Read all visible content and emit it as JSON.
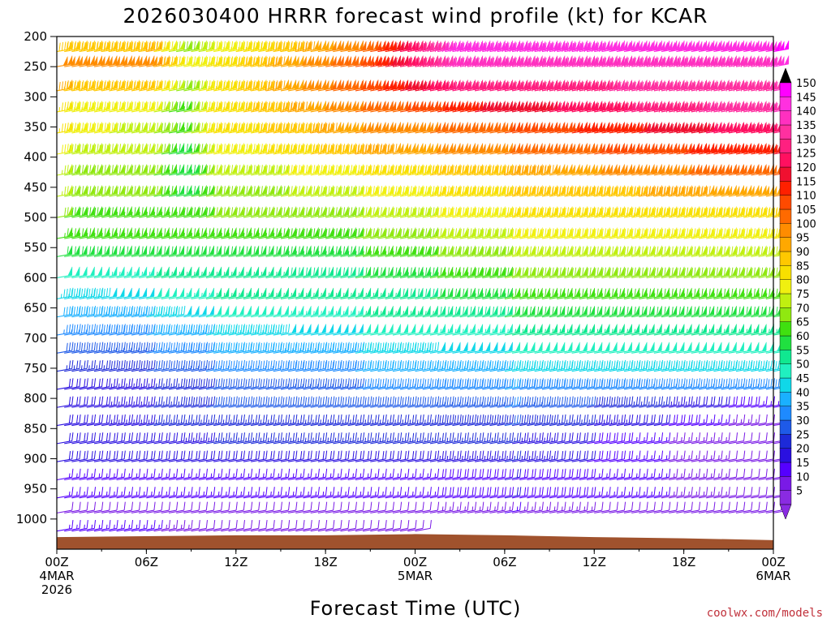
{
  "chart_data": {
    "type": "wind-barb time-height",
    "title": "2026030400 HRRR forecast wind profile (kt) for KCAR",
    "xlabel": "Forecast Time (UTC)",
    "ylabel": "",
    "credit": "coolwx.com/models",
    "y_ticks": [
      "200",
      "250",
      "300",
      "350",
      "400",
      "450",
      "500",
      "550",
      "600",
      "650",
      "700",
      "750",
      "800",
      "850",
      "900",
      "950",
      "1000"
    ],
    "y_values_hpa": [
      200,
      250,
      300,
      350,
      400,
      450,
      500,
      550,
      600,
      650,
      700,
      750,
      800,
      850,
      900,
      950,
      1000
    ],
    "ylim_hpa": [
      200,
      1050
    ],
    "x_ticks": [
      {
        "hour": 0,
        "lines": [
          "00Z",
          "4MAR",
          "2026"
        ]
      },
      {
        "hour": 6,
        "lines": [
          "06Z"
        ]
      },
      {
        "hour": 12,
        "lines": [
          "12Z"
        ]
      },
      {
        "hour": 18,
        "lines": [
          "18Z"
        ]
      },
      {
        "hour": 24,
        "lines": [
          "00Z",
          "5MAR"
        ]
      },
      {
        "hour": 30,
        "lines": [
          "06Z"
        ]
      },
      {
        "hour": 36,
        "lines": [
          "12Z"
        ]
      },
      {
        "hour": 42,
        "lines": [
          "18Z"
        ]
      },
      {
        "hour": 48,
        "lines": [
          "00Z",
          "6MAR"
        ]
      }
    ],
    "xlim_hours": [
      0,
      48
    ],
    "colorbar": {
      "levels": [
        5,
        10,
        15,
        20,
        25,
        30,
        35,
        40,
        45,
        50,
        55,
        60,
        65,
        70,
        75,
        80,
        85,
        90,
        95,
        100,
        105,
        110,
        115,
        120,
        125,
        130,
        135,
        140,
        145,
        150
      ],
      "labels": [
        "5",
        "10",
        "15",
        "20",
        "25",
        "30",
        "35",
        "40",
        "45",
        "50",
        "55",
        "60",
        "65",
        "70",
        "75",
        "80",
        "85",
        "90",
        "95",
        "100",
        "105",
        "110",
        "115",
        "120",
        "125",
        "130",
        "135",
        "140",
        "145",
        "150"
      ],
      "colors": [
        "#8a2be2",
        "#7a1ae6",
        "#5500ff",
        "#2a10e0",
        "#1d2ad8",
        "#1e5ae8",
        "#1e8aff",
        "#1ab0ff",
        "#10d8e8",
        "#20f0c0",
        "#10e890",
        "#20e040",
        "#40e010",
        "#90e810",
        "#c0f010",
        "#f0f010",
        "#f8e000",
        "#ffc800",
        "#ffa800",
        "#ff8c00",
        "#ff6a00",
        "#ff4a00",
        "#ff2000",
        "#f01030",
        "#ff1060",
        "#ff2080",
        "#ff30a0",
        "#ff30c0",
        "#ff30e0",
        "#ff00ff"
      ],
      "arrow_top_color": "#000000",
      "arrow_bottom_color": "#8a2be2"
    },
    "levels": [
      {
        "p": 225,
        "speeds": [
          [
            0,
            90
          ],
          [
            6,
            95
          ],
          [
            8,
            70
          ],
          [
            10,
            80
          ],
          [
            20,
            105
          ],
          [
            26,
            145
          ],
          [
            48,
            150
          ]
        ]
      },
      {
        "p": 250,
        "speeds": [
          [
            0,
            100
          ],
          [
            6,
            100
          ],
          [
            8,
            80
          ],
          [
            10,
            85
          ],
          [
            20,
            110
          ],
          [
            26,
            140
          ],
          [
            48,
            145
          ]
        ]
      },
      {
        "p": 290,
        "speeds": [
          [
            0,
            95
          ],
          [
            6,
            90
          ],
          [
            8,
            70
          ],
          [
            10,
            85
          ],
          [
            20,
            110
          ],
          [
            26,
            130
          ],
          [
            48,
            140
          ]
        ]
      },
      {
        "p": 325,
        "speeds": [
          [
            0,
            85
          ],
          [
            6,
            80
          ],
          [
            8,
            65
          ],
          [
            10,
            85
          ],
          [
            20,
            105
          ],
          [
            28,
            120
          ],
          [
            48,
            140
          ]
        ]
      },
      {
        "p": 360,
        "speeds": [
          [
            0,
            85
          ],
          [
            6,
            75
          ],
          [
            8,
            65
          ],
          [
            10,
            85
          ],
          [
            20,
            100
          ],
          [
            30,
            110
          ],
          [
            48,
            130
          ]
        ]
      },
      {
        "p": 395,
        "speeds": [
          [
            0,
            80
          ],
          [
            6,
            75
          ],
          [
            8,
            60
          ],
          [
            10,
            80
          ],
          [
            20,
            95
          ],
          [
            30,
            105
          ],
          [
            48,
            120
          ]
        ]
      },
      {
        "p": 430,
        "speeds": [
          [
            0,
            75
          ],
          [
            6,
            70
          ],
          [
            8,
            60
          ],
          [
            10,
            75
          ],
          [
            20,
            85
          ],
          [
            30,
            95
          ],
          [
            48,
            110
          ]
        ]
      },
      {
        "p": 465,
        "speeds": [
          [
            0,
            75
          ],
          [
            6,
            70
          ],
          [
            8,
            60
          ],
          [
            10,
            70
          ],
          [
            20,
            80
          ],
          [
            30,
            90
          ],
          [
            48,
            100
          ]
        ]
      },
      {
        "p": 500,
        "speeds": [
          [
            0,
            70
          ],
          [
            6,
            65
          ],
          [
            10,
            70
          ],
          [
            20,
            75
          ],
          [
            30,
            85
          ],
          [
            48,
            90
          ]
        ]
      },
      {
        "p": 535,
        "speeds": [
          [
            0,
            65
          ],
          [
            6,
            65
          ],
          [
            10,
            65
          ],
          [
            20,
            70
          ],
          [
            30,
            80
          ],
          [
            48,
            85
          ]
        ]
      },
      {
        "p": 565,
        "speeds": [
          [
            0,
            60
          ],
          [
            6,
            60
          ],
          [
            10,
            60
          ],
          [
            20,
            65
          ],
          [
            30,
            75
          ],
          [
            48,
            75
          ]
        ]
      },
      {
        "p": 600,
        "speeds": [
          [
            0,
            50
          ],
          [
            6,
            55
          ],
          [
            10,
            55
          ],
          [
            20,
            60
          ],
          [
            30,
            70
          ],
          [
            48,
            70
          ]
        ]
      },
      {
        "p": 635,
        "speeds": [
          [
            0,
            45
          ],
          [
            6,
            50
          ],
          [
            10,
            55
          ],
          [
            20,
            55
          ],
          [
            30,
            65
          ],
          [
            48,
            65
          ]
        ]
      },
      {
        "p": 665,
        "speeds": [
          [
            0,
            40
          ],
          [
            6,
            45
          ],
          [
            10,
            50
          ],
          [
            20,
            55
          ],
          [
            30,
            60
          ],
          [
            48,
            60
          ]
        ]
      },
      {
        "p": 695,
        "speeds": [
          [
            0,
            35
          ],
          [
            6,
            40
          ],
          [
            10,
            45
          ],
          [
            20,
            50
          ],
          [
            30,
            55
          ],
          [
            48,
            55
          ]
        ]
      },
      {
        "p": 725,
        "speeds": [
          [
            0,
            30
          ],
          [
            6,
            35
          ],
          [
            10,
            40
          ],
          [
            20,
            45
          ],
          [
            30,
            50
          ],
          [
            48,
            50
          ]
        ]
      },
      {
        "p": 755,
        "speeds": [
          [
            0,
            25
          ],
          [
            6,
            30
          ],
          [
            10,
            35
          ],
          [
            20,
            40
          ],
          [
            30,
            45
          ],
          [
            48,
            45
          ]
        ]
      },
      {
        "p": 785,
        "speeds": [
          [
            0,
            20
          ],
          [
            6,
            25
          ],
          [
            10,
            30
          ],
          [
            20,
            35
          ],
          [
            30,
            40
          ],
          [
            48,
            35
          ]
        ]
      },
      {
        "p": 815,
        "speeds": [
          [
            0,
            20
          ],
          [
            6,
            25
          ],
          [
            10,
            30
          ],
          [
            20,
            30
          ],
          [
            30,
            35
          ],
          [
            40,
            25
          ],
          [
            48,
            15
          ]
        ]
      },
      {
        "p": 845,
        "speeds": [
          [
            0,
            20
          ],
          [
            6,
            25
          ],
          [
            10,
            25
          ],
          [
            20,
            25
          ],
          [
            30,
            30
          ],
          [
            40,
            20
          ],
          [
            48,
            10
          ]
        ]
      },
      {
        "p": 875,
        "speeds": [
          [
            0,
            20
          ],
          [
            6,
            20
          ],
          [
            10,
            25
          ],
          [
            20,
            25
          ],
          [
            30,
            25
          ],
          [
            40,
            15
          ],
          [
            48,
            10
          ]
        ]
      },
      {
        "p": 905,
        "speeds": [
          [
            0,
            20
          ],
          [
            6,
            20
          ],
          [
            10,
            20
          ],
          [
            20,
            20
          ],
          [
            30,
            25
          ],
          [
            40,
            15
          ],
          [
            48,
            10
          ]
        ]
      },
      {
        "p": 935,
        "speeds": [
          [
            0,
            15
          ],
          [
            6,
            15
          ],
          [
            10,
            15
          ],
          [
            20,
            15
          ],
          [
            30,
            20
          ],
          [
            40,
            15
          ],
          [
            48,
            10
          ]
        ]
      },
      {
        "p": 965,
        "speeds": [
          [
            0,
            15
          ],
          [
            6,
            15
          ],
          [
            10,
            15
          ],
          [
            20,
            15
          ],
          [
            30,
            20
          ],
          [
            40,
            15
          ],
          [
            48,
            10
          ]
        ]
      },
      {
        "p": 990,
        "speeds": [
          [
            0,
            10
          ],
          [
            6,
            10
          ],
          [
            10,
            10
          ],
          [
            20,
            10
          ],
          [
            30,
            15
          ],
          [
            40,
            10
          ],
          [
            48,
            10
          ]
        ]
      },
      {
        "p": 1020,
        "speeds": [
          [
            0,
            15
          ],
          [
            6,
            15
          ],
          [
            10,
            10
          ],
          [
            20,
            10
          ],
          [
            24,
            10
          ]
        ]
      }
    ],
    "terrain": {
      "color": "#a0522d",
      "surface_pressure_hpa": [
        [
          0,
          1030
        ],
        [
          12,
          1027
        ],
        [
          18,
          1027
        ],
        [
          24,
          1025
        ],
        [
          30,
          1027
        ],
        [
          36,
          1030
        ],
        [
          42,
          1032
        ],
        [
          48,
          1035
        ]
      ]
    },
    "grid": false,
    "legend": "colorbar-right"
  }
}
